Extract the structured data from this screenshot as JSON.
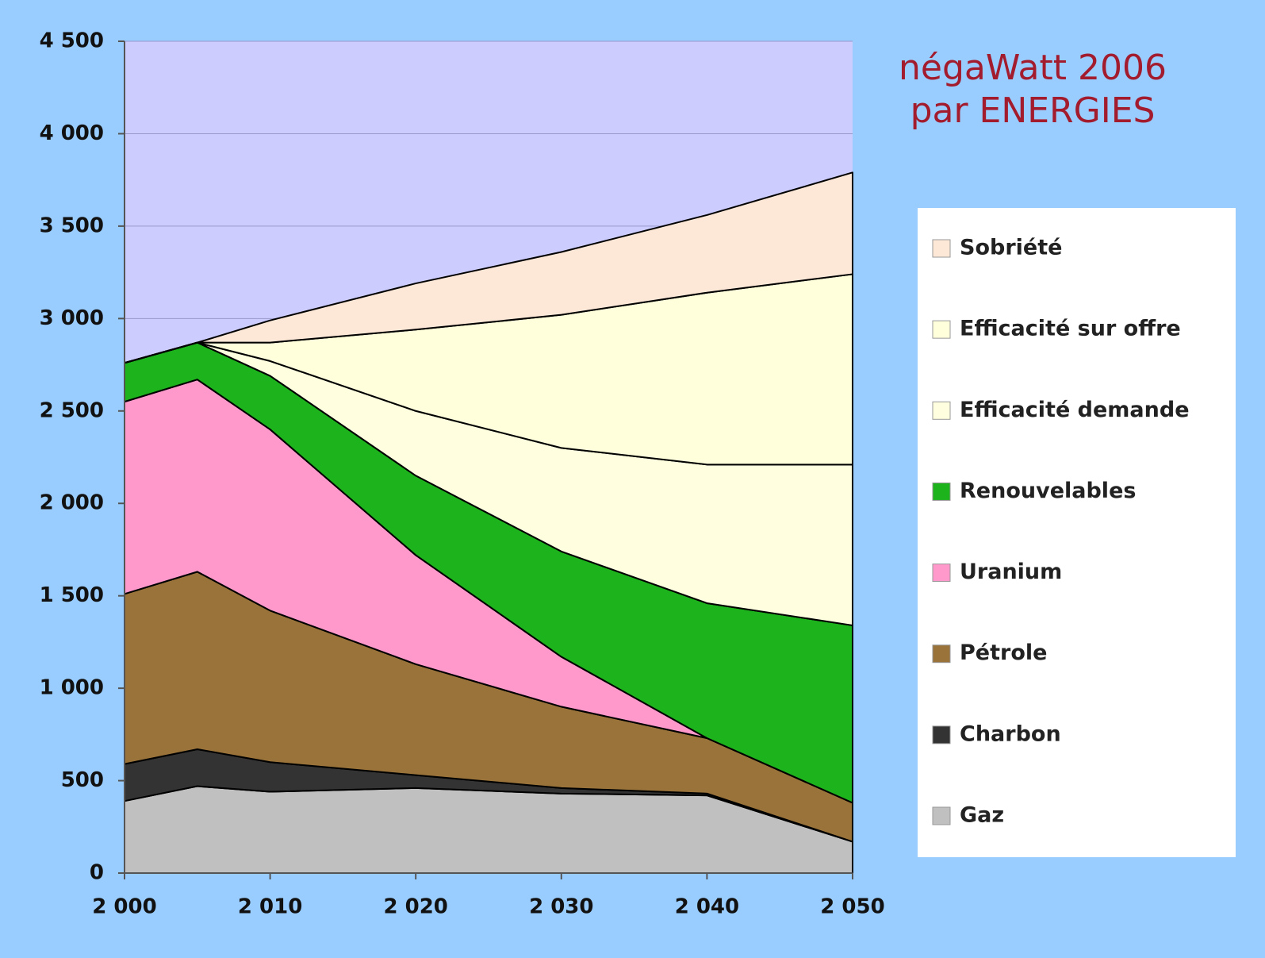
{
  "chart_data": {
    "type": "stacked_area",
    "title": "négaWatt 2006",
    "subtitle": "par ENERGIES",
    "x": [
      2000,
      2005,
      2010,
      2020,
      2030,
      2040,
      2050
    ],
    "series": [
      {
        "name": "Gaz",
        "color": "#c0c0c0",
        "values": [
          390,
          470,
          440,
          460,
          430,
          420,
          170
        ]
      },
      {
        "name": "Charbon",
        "color": "#333333",
        "values": [
          200,
          200,
          160,
          70,
          30,
          10,
          0
        ]
      },
      {
        "name": "Pétrole",
        "color": "#99733a",
        "values": [
          920,
          960,
          820,
          600,
          440,
          300,
          210
        ]
      },
      {
        "name": "Uranium",
        "color": "#ff99cc",
        "values": [
          1040,
          1040,
          980,
          590,
          270,
          0,
          0
        ]
      },
      {
        "name": "Renouvelables",
        "color": "#1db31d",
        "values": [
          210,
          200,
          290,
          430,
          570,
          730,
          960
        ]
      },
      {
        "name": "Efficacité demande",
        "color": "#ffffe0",
        "values": [
          0,
          0,
          80,
          350,
          560,
          750,
          870
        ]
      },
      {
        "name": "Efficacité sur offre",
        "color": "#ffffdc",
        "values": [
          0,
          0,
          100,
          440,
          720,
          930,
          1030
        ]
      },
      {
        "name": "Sobriété",
        "color": "#fde8d8",
        "values": [
          0,
          0,
          120,
          250,
          340,
          420,
          550
        ]
      }
    ],
    "xlim": [
      2000,
      2050
    ],
    "xticks": [
      {
        "value": 2000,
        "label": "2 000"
      },
      {
        "value": 2010,
        "label": "2 010"
      },
      {
        "value": 2020,
        "label": "2 020"
      },
      {
        "value": 2030,
        "label": "2 030"
      },
      {
        "value": 2040,
        "label": "2 040"
      },
      {
        "value": 2050,
        "label": "2 050"
      }
    ],
    "ylim": [
      0,
      4500
    ],
    "yticks": [
      0,
      500,
      {
        "value": 1000,
        "label": "1 000"
      },
      {
        "value": 1500,
        "label": "1 500"
      },
      {
        "value": 2000,
        "label": "2 000"
      },
      {
        "value": 2500,
        "label": "2 500"
      },
      {
        "value": 3000,
        "label": "3 000"
      },
      {
        "value": 3500,
        "label": "3 500"
      },
      {
        "value": 4000,
        "label": "4 000"
      },
      {
        "value": 4500,
        "label": "4 500"
      }
    ],
    "grid": true,
    "legend": "right"
  }
}
